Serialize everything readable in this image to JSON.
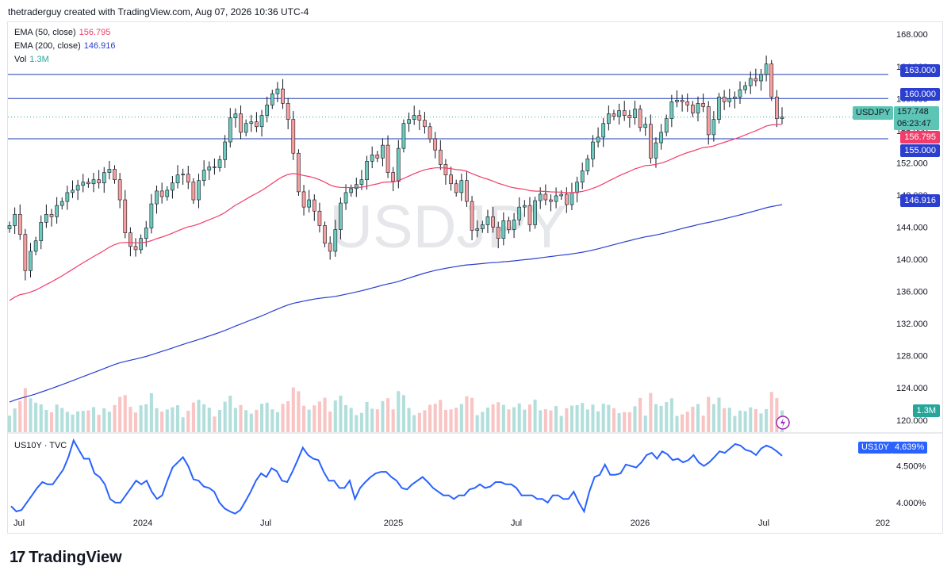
{
  "header": {
    "text": "thetraderguy created with TradingView.com, Aug 07, 2026 10:36 UTC-4"
  },
  "legend": {
    "ema50": {
      "label": "EMA (50, close)",
      "value": "156.795",
      "color": "#f23d6a"
    },
    "ema200": {
      "label": "EMA (200, close)",
      "value": "146.916",
      "color": "#2a3ecf"
    },
    "vol": {
      "label": "Vol",
      "value": "1.3M",
      "color": "#26a69a"
    }
  },
  "watermark": "USDJPY",
  "price_tags": {
    "symbol": "USDJPY",
    "last": "157.748",
    "countdown": "06:23:47",
    "ema50": "156.795",
    "ema200": "146.916",
    "line_163": "163.000",
    "line_160": "160.000",
    "line_155": "155.000",
    "vol": "1.3M"
  },
  "sub_chart": {
    "label": "US10Y · TVC",
    "tag_symbol": "US10Y",
    "tag_value": "4.639%",
    "ticks": [
      "4.500%",
      "4.000%"
    ]
  },
  "footer": {
    "brand": "TradingView"
  },
  "chart_data": {
    "type": "candlestick",
    "symbol": "USDJPY",
    "y_axis_ticks": [
      "168.000",
      "164.000",
      "160.000",
      "156.000",
      "152.000",
      "148.000",
      "144.000",
      "140.000",
      "136.000",
      "132.000",
      "128.000",
      "124.000",
      "120.000"
    ],
    "ylim": [
      118.5,
      169.5
    ],
    "x_axis_ticks": [
      "Jul",
      "2024",
      "Jul",
      "2025",
      "Jul",
      "2026",
      "Jul",
      "202"
    ],
    "horizontal_lines": [
      163,
      160,
      155
    ],
    "close": [
      144.2,
      145.6,
      143.1,
      138.6,
      141.0,
      142.3,
      144.6,
      145.6,
      145.3,
      146.7,
      147.2,
      148.3,
      148.6,
      149.2,
      149.6,
      149.4,
      149.9,
      149.5,
      150.8,
      151.2,
      149.9,
      147.4,
      143.3,
      141.6,
      141.2,
      142.6,
      143.9,
      146.9,
      148.5,
      147.8,
      148.6,
      149.5,
      150.5,
      150.6,
      149.6,
      147.4,
      149.8,
      151.1,
      151.5,
      151.4,
      152.4,
      154.6,
      157.6,
      158.1,
      155.8,
      156.9,
      157.1,
      156.5,
      157.9,
      159.2,
      160.6,
      161.2,
      159.4,
      157.4,
      153.2,
      148.4,
      146.5,
      147.4,
      146.0,
      144.2,
      142.0,
      141.0,
      143.7,
      147.0,
      148.3,
      148.8,
      149.3,
      149.9,
      152.2,
      153.0,
      152.6,
      154.2,
      150.8,
      149.7,
      153.8,
      156.9,
      157.4,
      157.9,
      157.3,
      156.5,
      155.0,
      153.6,
      151.8,
      150.5,
      149.4,
      148.3,
      149.8,
      147.2,
      143.6,
      143.8,
      144.3,
      145.3,
      144.0,
      142.6,
      144.8,
      143.7,
      144.9,
      146.5,
      146.7,
      144.3,
      147.3,
      148.1,
      147.4,
      147.2,
      147.9,
      148.1,
      146.8,
      148.3,
      149.6,
      151.0,
      152.5,
      154.6,
      155.2,
      156.9,
      158.1,
      157.8,
      158.5,
      157.9,
      157.6,
      158.7,
      156.4,
      156.8,
      152.6,
      154.5,
      155.8,
      157.5,
      159.6,
      159.8,
      159.6,
      159.2,
      158.2,
      159.4,
      159.0,
      155.5,
      157.4,
      160.2,
      159.6,
      160.0,
      160.2,
      161.1,
      161.6,
      162.5,
      162.2,
      163.0,
      164.3,
      160.2,
      157.5,
      157.7
    ],
    "series": [
      {
        "name": "EMA (50, close)",
        "last": 156.795
      },
      {
        "name": "EMA (200, close)",
        "last": 146.916
      },
      {
        "name": "US10Y · TVC",
        "last": 4.639,
        "ylim": [
          3.88,
          4.93
        ],
        "values": [
          3.95,
          3.88,
          3.9,
          4.0,
          4.1,
          4.2,
          4.28,
          4.25,
          4.25,
          4.35,
          4.45,
          4.62,
          4.85,
          4.72,
          4.6,
          4.6,
          4.4,
          4.35,
          4.25,
          4.05,
          4.0,
          4.0,
          4.1,
          4.2,
          4.3,
          4.25,
          4.3,
          4.15,
          4.05,
          4.1,
          4.3,
          4.48,
          4.55,
          4.62,
          4.5,
          4.32,
          4.3,
          4.22,
          4.2,
          4.15,
          4.0,
          3.92,
          3.88,
          3.85,
          3.9,
          4.02,
          4.15,
          4.3,
          4.4,
          4.35,
          4.47,
          4.43,
          4.3,
          4.28,
          4.42,
          4.58,
          4.75,
          4.65,
          4.6,
          4.58,
          4.42,
          4.3,
          4.3,
          4.2,
          4.2,
          4.3,
          4.05,
          4.2,
          4.28,
          4.35,
          4.4,
          4.42,
          4.42,
          4.35,
          4.3,
          4.2,
          4.18,
          4.25,
          4.3,
          4.35,
          4.28,
          4.2,
          4.15,
          4.1,
          4.1,
          4.05,
          4.1,
          4.1,
          4.18,
          4.2,
          4.25,
          4.2,
          4.22,
          4.28,
          4.28,
          4.25,
          4.25,
          4.2,
          4.1,
          4.1,
          4.1,
          4.05,
          4.05,
          4.0,
          4.1,
          4.1,
          4.05,
          4.05,
          4.15,
          4.0,
          3.88,
          4.15,
          4.35,
          4.38,
          4.52,
          4.38,
          4.38,
          4.4,
          4.52,
          4.5,
          4.48,
          4.55,
          4.65,
          4.68,
          4.6,
          4.7,
          4.66,
          4.58,
          4.6,
          4.55,
          4.58,
          4.65,
          4.55,
          4.5,
          4.55,
          4.62,
          4.7,
          4.68,
          4.74,
          4.8,
          4.78,
          4.72,
          4.7,
          4.65,
          4.74,
          4.78,
          4.75,
          4.7,
          4.64
        ]
      }
    ]
  }
}
